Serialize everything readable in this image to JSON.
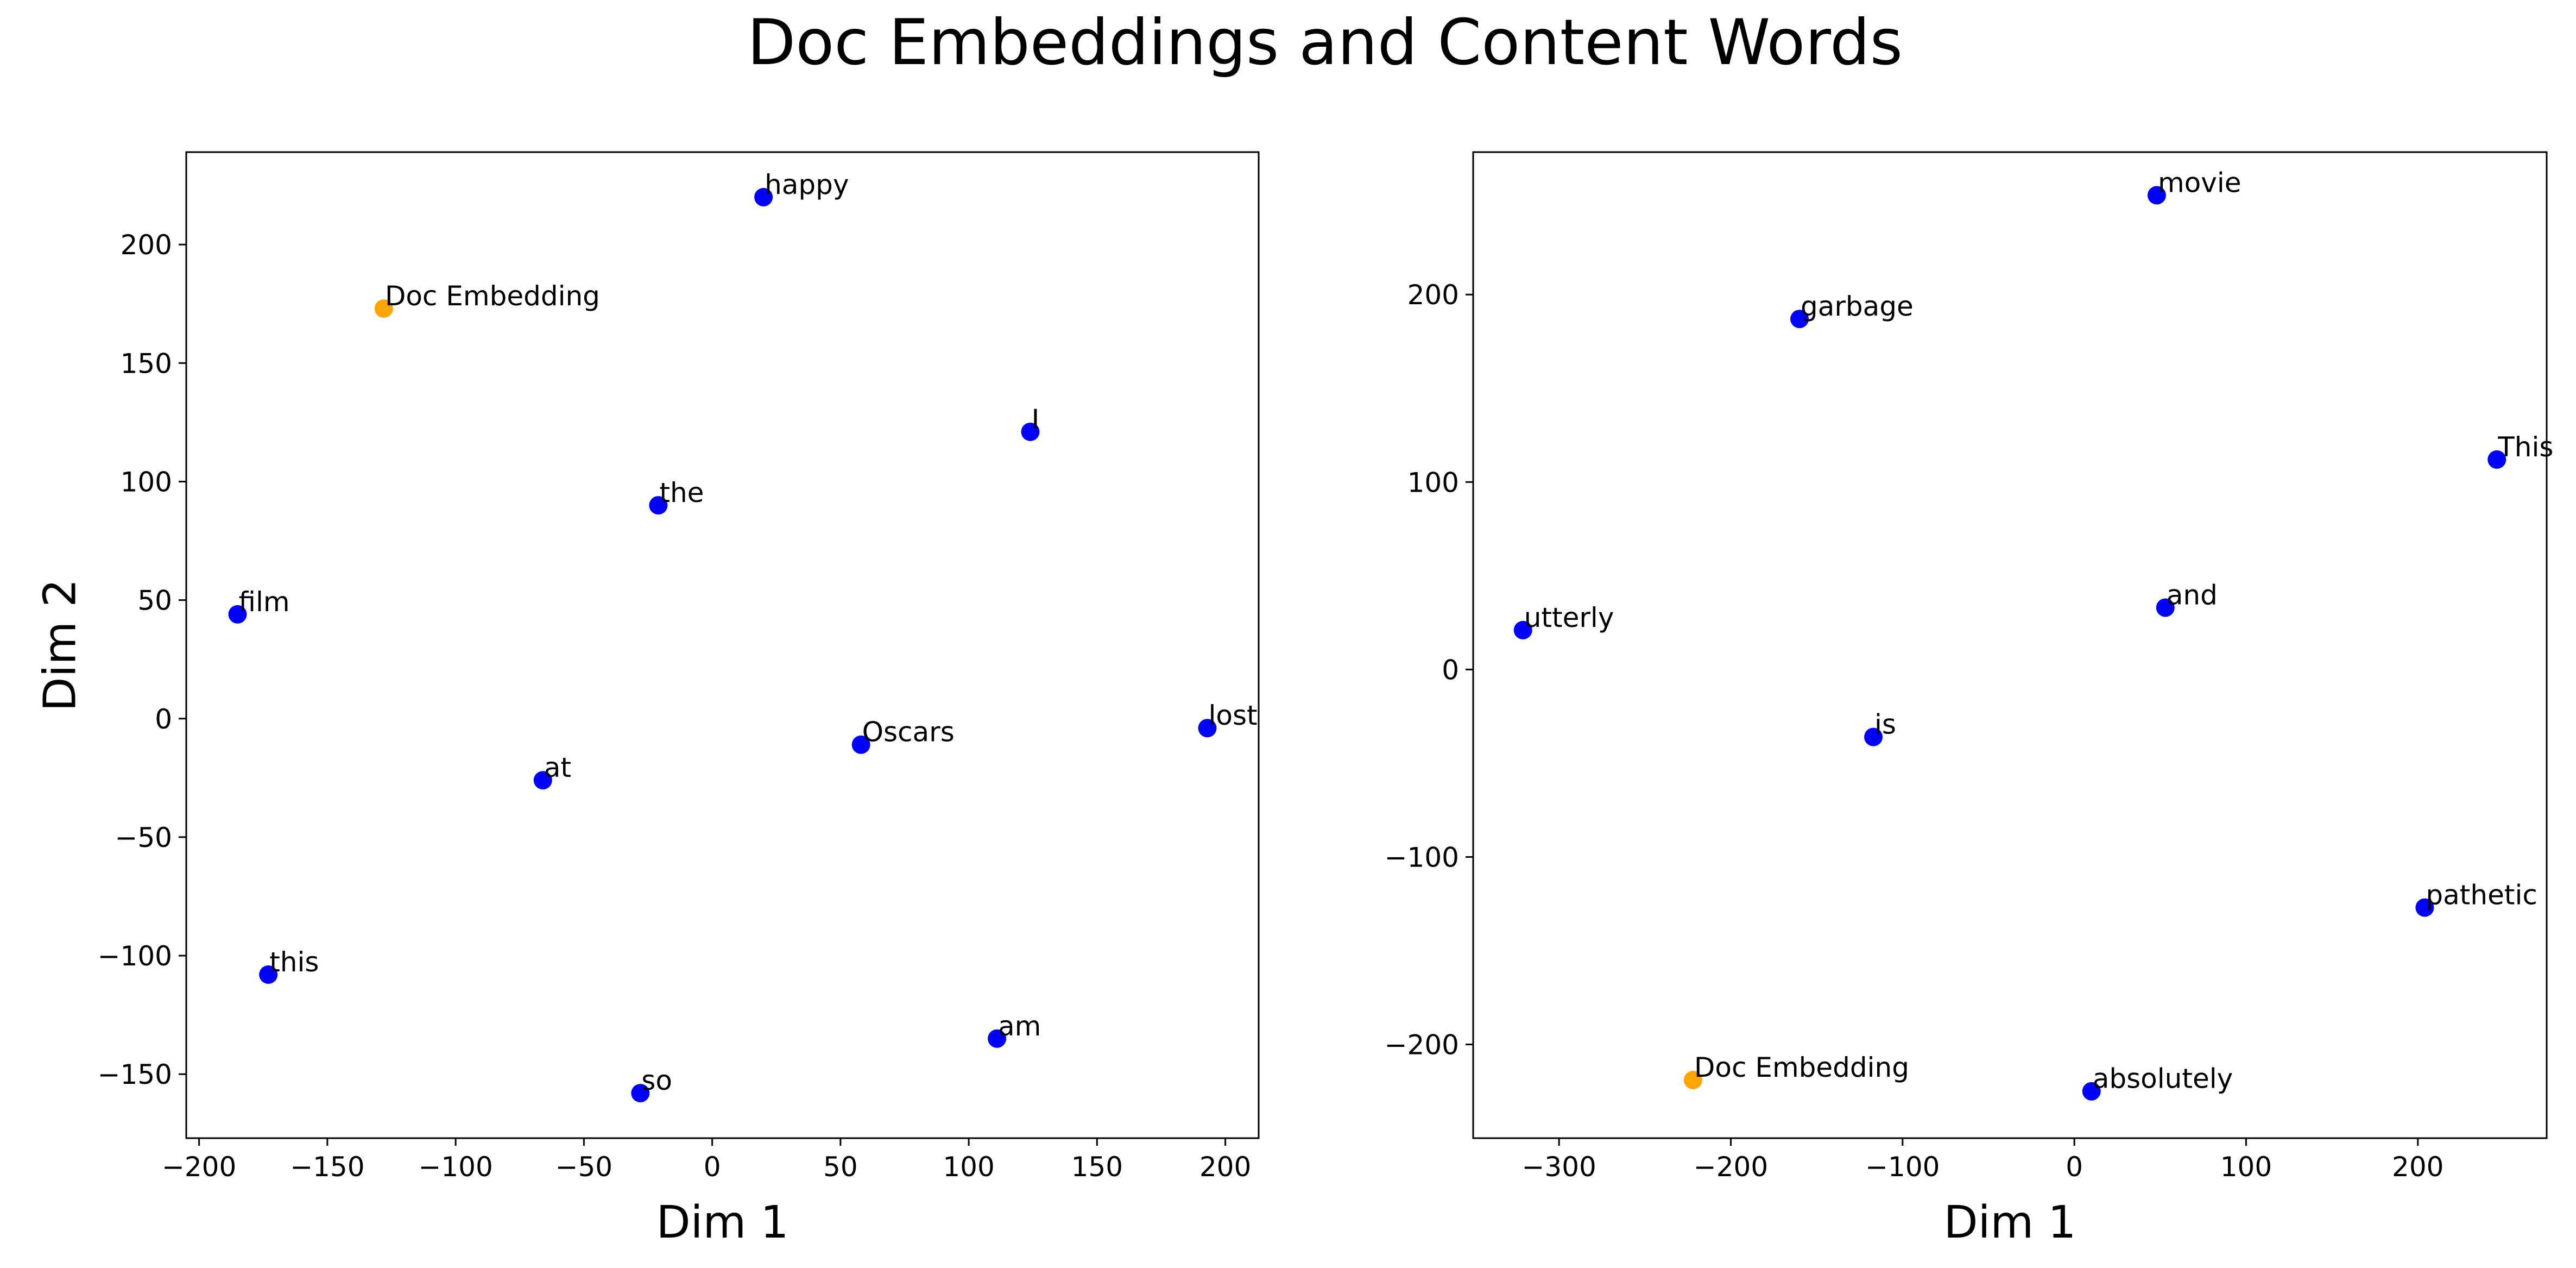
{
  "figure": {
    "title": "Doc Embeddings and Content Words"
  },
  "chart_data": [
    {
      "type": "scatter",
      "xlabel": "Dim 1",
      "ylabel": "Dim 2",
      "xlim": [
        -205,
        213
      ],
      "ylim": [
        -177,
        239
      ],
      "xticks": [
        -200,
        -150,
        -100,
        -50,
        0,
        50,
        100,
        150,
        200
      ],
      "yticks": [
        -150,
        -100,
        -50,
        0,
        50,
        100,
        150,
        200
      ],
      "grid": false,
      "points": [
        {
          "label": "happy",
          "x": 20,
          "y": 220,
          "color": "#0000ff"
        },
        {
          "label": "Doc Embedding",
          "x": -128,
          "y": 173,
          "color": "#ffa500"
        },
        {
          "label": "I",
          "x": 124,
          "y": 121,
          "color": "#0000ff"
        },
        {
          "label": "the",
          "x": -21,
          "y": 90,
          "color": "#0000ff"
        },
        {
          "label": "film",
          "x": -185,
          "y": 44,
          "color": "#0000ff"
        },
        {
          "label": "lost",
          "x": 193,
          "y": -4,
          "color": "#0000ff"
        },
        {
          "label": "Oscars",
          "x": 58,
          "y": -11,
          "color": "#0000ff"
        },
        {
          "label": "at",
          "x": -66,
          "y": -26,
          "color": "#0000ff"
        },
        {
          "label": "this",
          "x": -173,
          "y": -108,
          "color": "#0000ff"
        },
        {
          "label": "am",
          "x": 111,
          "y": -135,
          "color": "#0000ff"
        },
        {
          "label": "so",
          "x": -28,
          "y": -158,
          "color": "#0000ff"
        }
      ]
    },
    {
      "type": "scatter",
      "xlabel": "Dim 1",
      "ylabel": "",
      "xlim": [
        -350,
        275
      ],
      "ylim": [
        -250,
        276
      ],
      "xticks": [
        -300,
        -200,
        -100,
        0,
        100,
        200
      ],
      "yticks": [
        -200,
        -100,
        0,
        100,
        200
      ],
      "grid": false,
      "points": [
        {
          "label": "movie",
          "x": 48,
          "y": 253,
          "color": "#0000ff"
        },
        {
          "label": "garbage",
          "x": -160,
          "y": 187,
          "color": "#0000ff"
        },
        {
          "label": "This",
          "x": 246,
          "y": 112,
          "color": "#0000ff"
        },
        {
          "label": "utterly",
          "x": -321,
          "y": 21,
          "color": "#0000ff"
        },
        {
          "label": "and",
          "x": 53,
          "y": 33,
          "color": "#0000ff"
        },
        {
          "label": "is",
          "x": -117,
          "y": -36,
          "color": "#0000ff"
        },
        {
          "label": "pathetic",
          "x": 204,
          "y": -127,
          "color": "#0000ff"
        },
        {
          "label": "Doc Embedding",
          "x": -222,
          "y": -219,
          "color": "#ffa500"
        },
        {
          "label": "absolutely",
          "x": 10,
          "y": -225,
          "color": "#0000ff"
        }
      ]
    }
  ]
}
